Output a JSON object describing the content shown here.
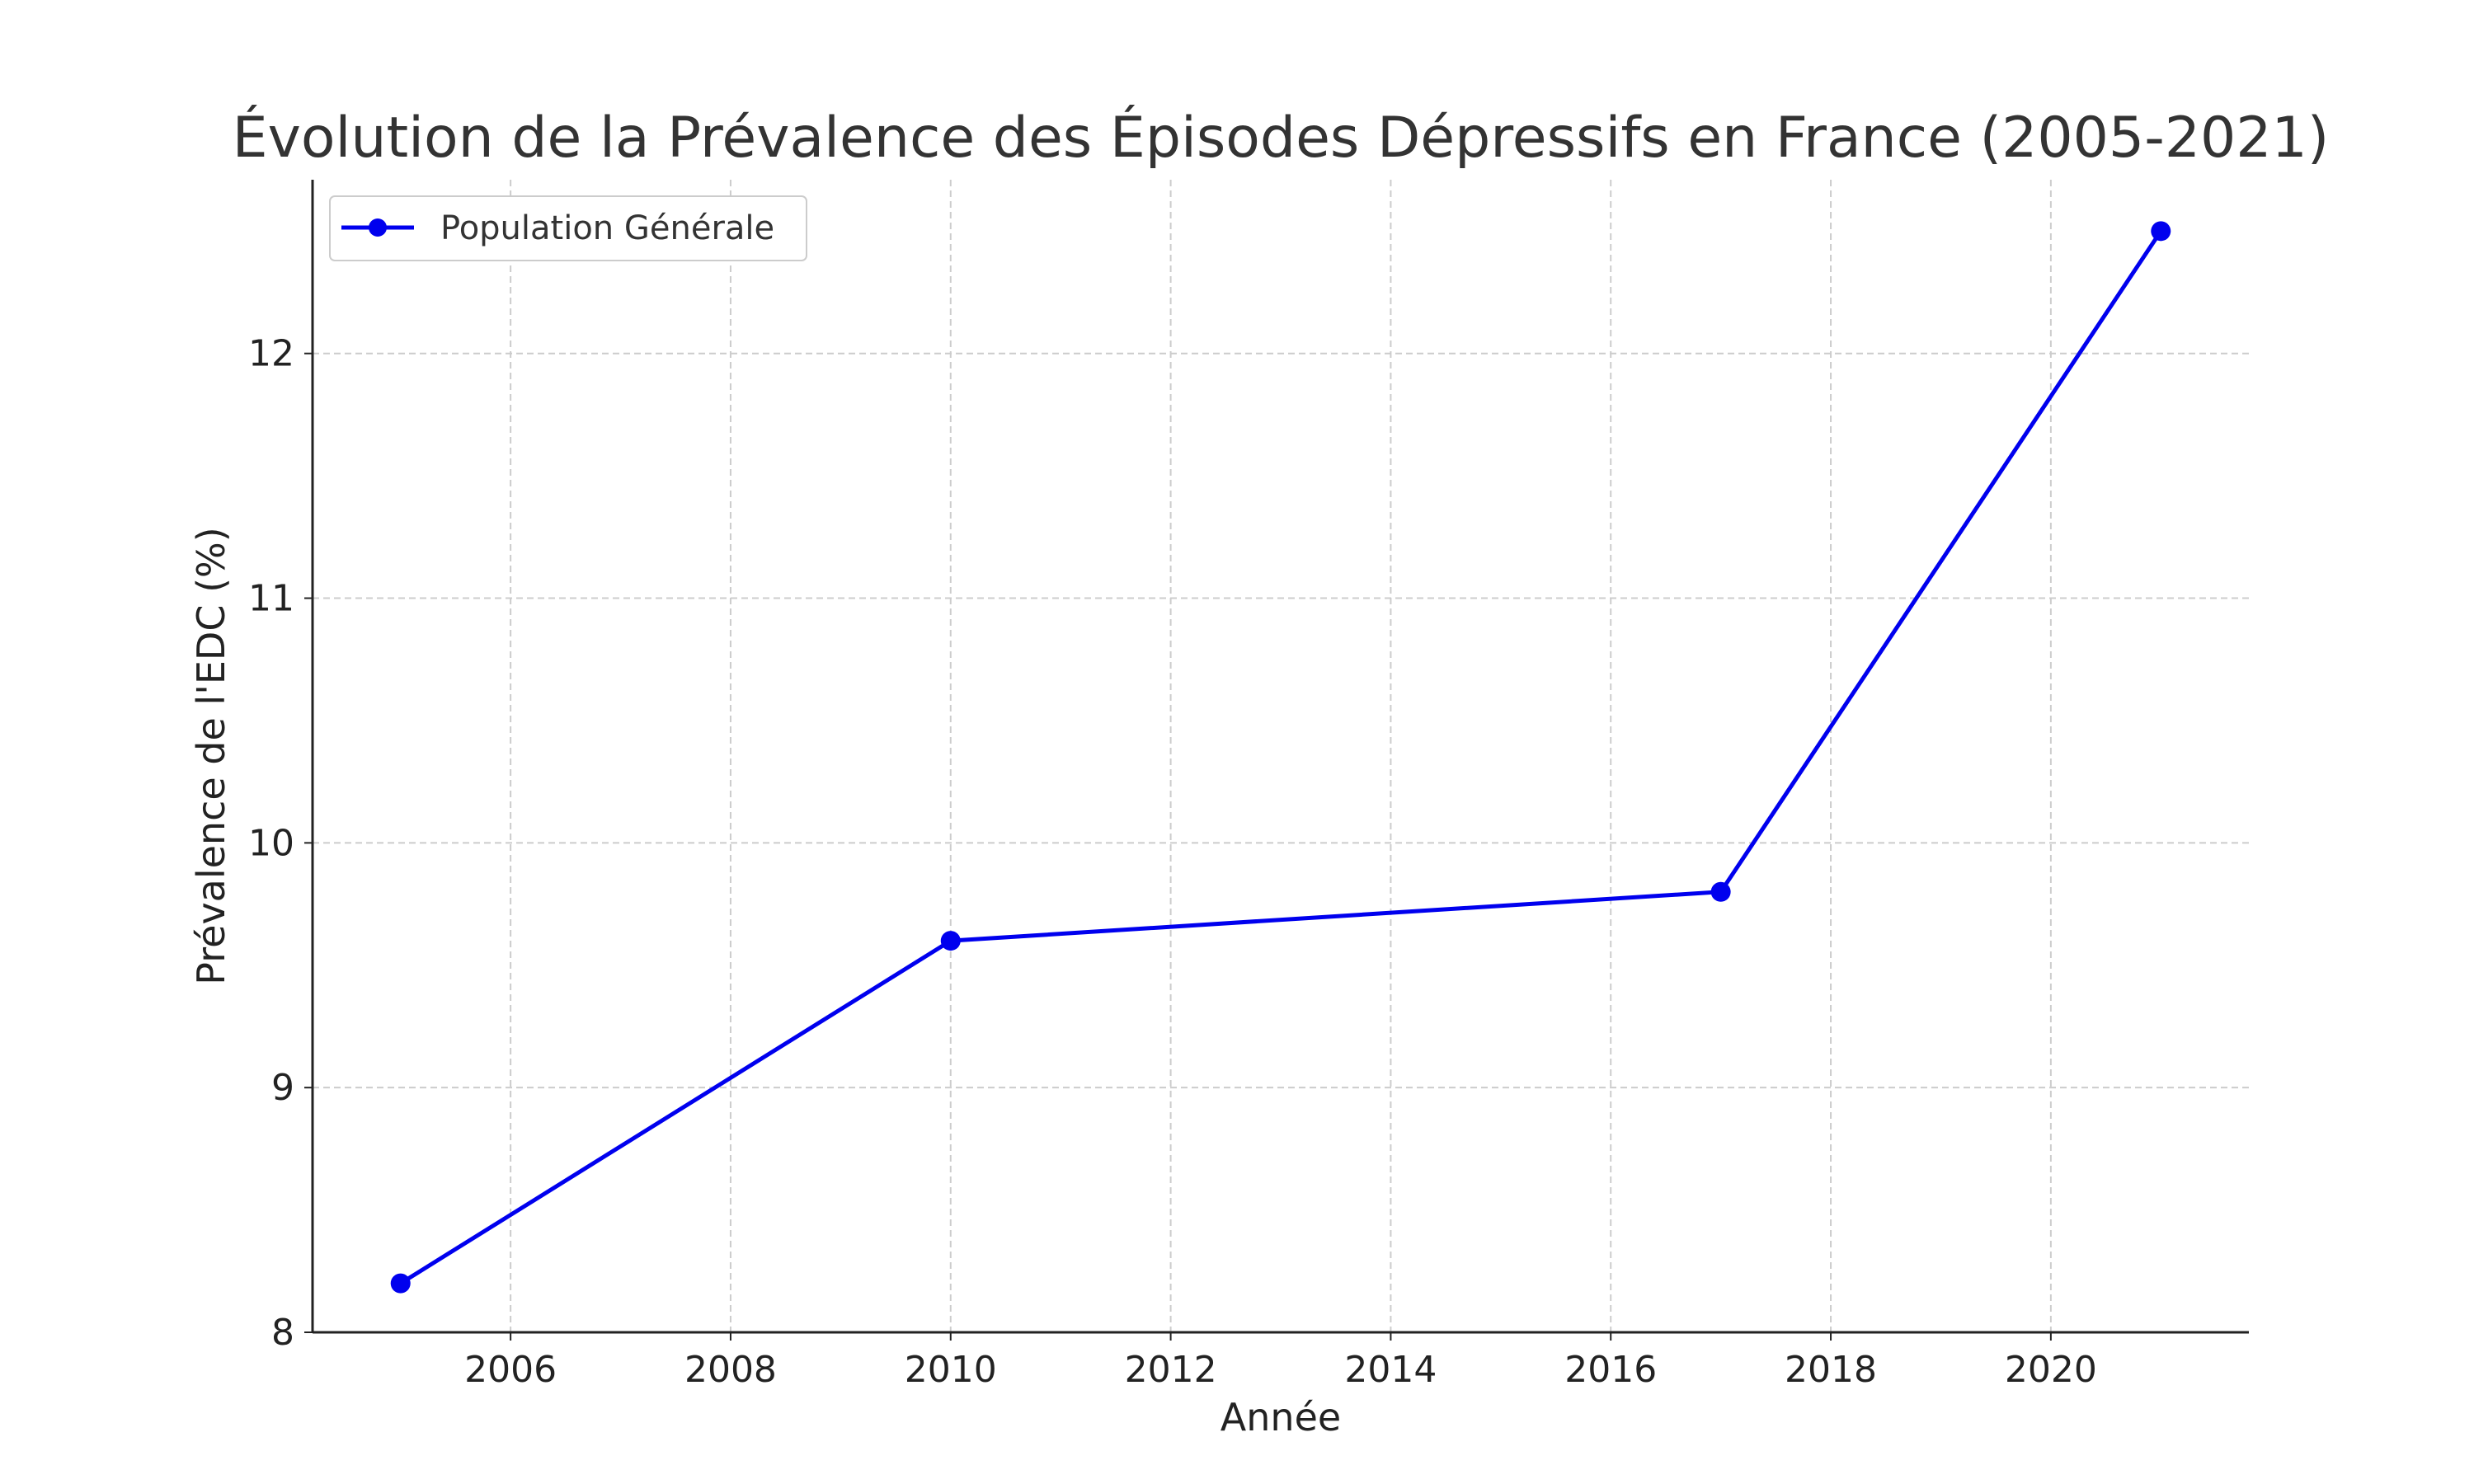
{
  "chart_data": {
    "type": "line",
    "title": "Évolution de la Prévalence des Épisodes Dépressifs en France (2005-2021)",
    "xlabel": "Année",
    "ylabel": "Prévalence de l'EDC (%)",
    "xlim": [
      2004.2,
      2021.8
    ],
    "ylim": [
      8,
      12.71
    ],
    "xticks": [
      2006,
      2008,
      2010,
      2012,
      2014,
      2016,
      2018,
      2020
    ],
    "yticks": [
      8,
      9,
      10,
      11,
      12
    ],
    "grid": true,
    "legend_position": "top-left",
    "series": [
      {
        "name": "Population Générale",
        "color": "#0000ee",
        "x": [
          2005,
          2010,
          2017,
          2021
        ],
        "y": [
          8.2,
          9.6,
          9.8,
          12.5
        ]
      }
    ]
  }
}
